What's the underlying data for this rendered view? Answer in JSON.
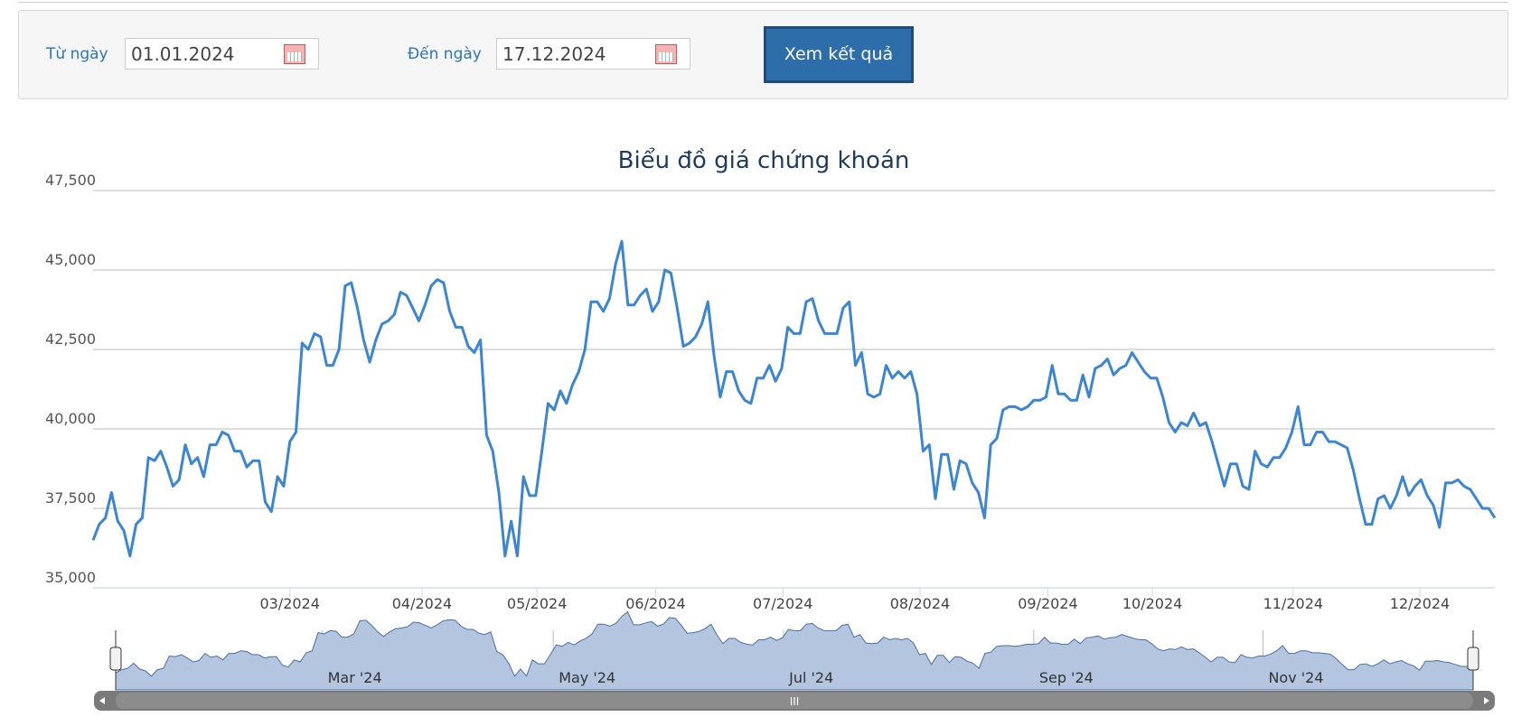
{
  "form": {
    "from_label": "Từ ngày",
    "from_value": "01.01.2024",
    "to_label": "Đến ngày",
    "to_value": "17.12.2024",
    "button": "Xem kết quả"
  },
  "chart_data": {
    "type": "line",
    "title": "Biểu đồ giá chứng khoán",
    "series": [
      {
        "color": "#3a86d4",
        "values": [
          36500,
          37000,
          37200,
          38000,
          37100,
          36800,
          36000,
          37000,
          37200,
          39100,
          39000,
          39300,
          38800,
          38200,
          38400,
          39500,
          38900,
          39100,
          38500,
          39500,
          39500,
          39900,
          39800,
          39300,
          39300,
          38800,
          39000,
          39000,
          37700,
          37400,
          38500,
          38200,
          39600,
          39900,
          42700,
          42500,
          43000,
          42900,
          42000,
          42000,
          42500,
          44500,
          44600,
          43800,
          42800,
          42100,
          42800,
          43300,
          43400,
          43600,
          44300,
          44200,
          43800,
          43400,
          43900,
          44500,
          44700,
          44600,
          43700,
          43200,
          43200,
          42600,
          42400,
          42800,
          39800,
          39300,
          38000,
          36000,
          37100,
          36000,
          38500,
          37900,
          37900,
          39300,
          40800,
          40600,
          41200,
          40800,
          41400,
          41800,
          42500,
          44000,
          44000,
          43700,
          44100,
          45200,
          45900,
          43900,
          43900,
          44200,
          44400,
          43700,
          44000,
          45000,
          44900,
          43800,
          42600,
          42700,
          42900,
          43300,
          44000,
          42300,
          41000,
          41800,
          41800,
          41200,
          40900,
          40800,
          41600,
          41600,
          42000,
          41500,
          41900,
          43200,
          43000,
          43000,
          44000,
          44100,
          43400,
          43000,
          43000,
          43000,
          43800,
          44000,
          42000,
          42400,
          41100,
          41000,
          41100,
          42000,
          41600,
          41800,
          41600,
          41800,
          41100,
          39300,
          39500,
          37800,
          39200,
          39200,
          38100,
          39000,
          38900,
          38300,
          38000,
          37200,
          39500,
          39700,
          40600,
          40700,
          40700,
          40600,
          40700,
          40900,
          40900,
          41000,
          42000,
          41100,
          41100,
          40900,
          40900,
          41700,
          41000,
          41900,
          42000,
          42200,
          41700,
          41900,
          42000,
          42400,
          42100,
          41800,
          41600,
          41600,
          41000,
          40200,
          39900,
          40200,
          40100,
          40500,
          40100,
          40200,
          39600,
          38900,
          38200,
          38900,
          38900,
          38200,
          38100,
          39300,
          38900,
          38800,
          39100,
          39100,
          39400,
          39900,
          40700,
          39500,
          39500,
          39900,
          39900,
          39600,
          39600,
          39500,
          39400,
          38700,
          37800,
          37000,
          37000,
          37800,
          37900,
          37500,
          37900,
          38500,
          37900,
          38200,
          38400,
          37900,
          37600,
          36900,
          38300,
          38300,
          38400,
          38200,
          38100,
          37800,
          37500,
          37500,
          37200
        ]
      }
    ],
    "xlim": [
      0,
      228
    ],
    "xticks": [
      {
        "value": 32,
        "label": "03/2024"
      },
      {
        "value": 53.5,
        "label": "04/2024"
      },
      {
        "value": 72.2,
        "label": "05/2024"
      },
      {
        "value": 91.5,
        "label": "06/2024"
      },
      {
        "value": 112.2,
        "label": "07/2024"
      },
      {
        "value": 134.5,
        "label": "08/2024"
      },
      {
        "value": 155.3,
        "label": "09/2024"
      },
      {
        "value": 172.3,
        "label": "10/2024"
      },
      {
        "value": 195.2,
        "label": "11/2024"
      },
      {
        "value": 215.8,
        "label": "12/2024"
      }
    ],
    "ylim": [
      35000,
      47500
    ],
    "yticks": [
      {
        "value": 35000,
        "label": "35,000"
      },
      {
        "value": 37500,
        "label": "37,500"
      },
      {
        "value": 40000,
        "label": "40,000"
      },
      {
        "value": 42500,
        "label": "42,500"
      },
      {
        "value": 45000,
        "label": "45,000"
      },
      {
        "value": 47500,
        "label": "47,500"
      }
    ],
    "grid": true,
    "navigator_ticks": [
      {
        "value": 34.7,
        "label": "Mar '24"
      },
      {
        "value": 73.5,
        "label": "May '24"
      },
      {
        "value": 112.2,
        "label": "Jul '24"
      },
      {
        "value": 154.2,
        "label": "Sep '24"
      },
      {
        "value": 192.7,
        "label": "Nov '24"
      }
    ]
  }
}
